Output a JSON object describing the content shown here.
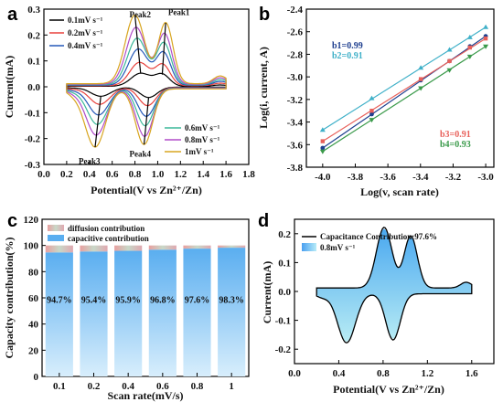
{
  "chart_data": [
    {
      "panel": "a",
      "type": "line",
      "xlabel": "Potential(V vs Zn²⁺/Zn)",
      "ylabel": "Current(mA)",
      "xlim": [
        0.0,
        1.8
      ],
      "ylim": [
        -0.3,
        0.3
      ],
      "xticks": [
        "0.0",
        "0.2",
        "0.4",
        "0.6",
        "0.8",
        "1.0",
        "1.2",
        "1.4",
        "1.6",
        "1.8"
      ],
      "yticks": [
        "-0.3",
        "-0.2",
        "-0.1",
        "0.0",
        "0.1",
        "0.2",
        "0.3"
      ],
      "legend_left": [
        "0.1mV s⁻¹",
        "0.2mV s⁻¹",
        "0.4mV s⁻¹"
      ],
      "legend_right": [
        "0.6mV s⁻¹",
        "0.8mV s⁻¹",
        "1mV s⁻¹"
      ],
      "peak_labels": [
        "Peak1",
        "Peak2",
        "Peak3",
        "Peak4"
      ],
      "series": [
        {
          "name": "0.1mV s⁻¹",
          "color": "#000000",
          "anodic_peaks": [
            0.05,
            0.045
          ],
          "cathodic_peaks": [
            -0.035,
            -0.04
          ],
          "peaks_v": [
            0.85,
            1.04,
            0.5,
            0.92
          ]
        },
        {
          "name": "0.2mV s⁻¹",
          "color": "#e8413c",
          "anodic_peaks": [
            0.09,
            0.08
          ],
          "cathodic_peaks": [
            -0.065,
            -0.07
          ],
          "peaks_v": [
            0.84,
            1.045,
            0.49,
            0.91
          ]
        },
        {
          "name": "0.4mV s⁻¹",
          "color": "#2458b8",
          "anodic_peaks": [
            0.14,
            0.125
          ],
          "cathodic_peaks": [
            -0.105,
            -0.11
          ],
          "peaks_v": [
            0.83,
            1.05,
            0.48,
            0.9
          ]
        },
        {
          "name": "0.6mV s⁻¹",
          "color": "#3cb89a",
          "anodic_peaks": [
            0.18,
            0.16
          ],
          "cathodic_peaks": [
            -0.14,
            -0.145
          ],
          "peaks_v": [
            0.82,
            1.055,
            0.47,
            0.89
          ]
        },
        {
          "name": "0.8mV s⁻¹",
          "color": "#b04cc8",
          "anodic_peaks": [
            0.22,
            0.195
          ],
          "cathodic_peaks": [
            -0.18,
            -0.185
          ],
          "peaks_v": [
            0.81,
            1.06,
            0.46,
            0.885
          ]
        },
        {
          "name": "1mV s⁻¹",
          "color": "#d8a520",
          "anodic_peaks": [
            0.265,
            0.235
          ],
          "cathodic_peaks": [
            -0.225,
            -0.215
          ],
          "peaks_v": [
            0.8,
            1.07,
            0.45,
            0.88
          ]
        }
      ]
    },
    {
      "panel": "b",
      "type": "scatter",
      "xlabel": "Log(v, scan rate)",
      "ylabel": "Log(i, current, A)",
      "xlim": [
        -4.1,
        -2.95
      ],
      "ylim": [
        -3.8,
        -2.4
      ],
      "xticks": [
        "-4.0",
        "-3.8",
        "-3.6",
        "-3.4",
        "-3.2",
        "-3.0"
      ],
      "yticks": [
        "-3.8",
        "-3.6",
        "-3.4",
        "-3.2",
        "-3.0",
        "-2.8",
        "-2.6",
        "-2.4"
      ],
      "x": [
        -4.0,
        -3.699,
        -3.398,
        -3.222,
        -3.097,
        -3.0
      ],
      "series": [
        {
          "name": "b1=0.99",
          "color": "#1f3f8f",
          "values": [
            -3.63,
            -3.33,
            -3.03,
            -2.86,
            -2.73,
            -2.64
          ]
        },
        {
          "name": "b2=0.91",
          "color": "#3fb0c8",
          "values": [
            -3.47,
            -3.19,
            -2.92,
            -2.76,
            -2.65,
            -2.56
          ]
        },
        {
          "name": "b3=0.91",
          "color": "#e8605a",
          "values": [
            -3.57,
            -3.3,
            -3.02,
            -2.86,
            -2.74,
            -2.66
          ]
        },
        {
          "name": "b4=0.93",
          "color": "#3a9a4a",
          "values": [
            -3.66,
            -3.38,
            -3.1,
            -2.94,
            -2.82,
            -2.73
          ]
        }
      ]
    },
    {
      "panel": "c",
      "type": "bar",
      "xlabel": "Scan rate(mV/s)",
      "ylabel": "Capacity contribution(%)",
      "ylim": [
        0,
        120
      ],
      "yticks": [
        "0",
        "20",
        "40",
        "60",
        "80",
        "100",
        "120"
      ],
      "categories": [
        "0.1",
        "0.2",
        "0.4",
        "0.6",
        "0.8",
        "1"
      ],
      "legend": [
        "diffusion contribution",
        "capacitive contribution"
      ],
      "series": [
        {
          "name": "capacitive contribution",
          "values": [
            94.7,
            95.4,
            95.9,
            96.8,
            97.6,
            98.3
          ]
        },
        {
          "name": "diffusion contribution",
          "values": [
            5.3,
            4.6,
            4.1,
            3.2,
            2.4,
            1.7
          ]
        }
      ],
      "labels": [
        "94.7%",
        "95.4%",
        "95.9%",
        "96.8%",
        "97.6%",
        "98.3%"
      ]
    },
    {
      "panel": "d",
      "type": "area",
      "xlabel": "Potential(V vs Zn²⁺/Zn)",
      "ylabel": "Current(mA)",
      "xlim": [
        0.0,
        1.8
      ],
      "ylim": [
        -0.25,
        0.25
      ],
      "xticks": [
        "0.0",
        "0.4",
        "0.8",
        "1.2",
        "1.6"
      ],
      "yticks": [
        "-0.2",
        "-0.1",
        "0.0",
        "0.1",
        "0.2"
      ],
      "legend": [
        "Capacitance Contribution:97.6%",
        "0.8mV s⁻¹"
      ]
    }
  ],
  "panel_letters": [
    "a",
    "b",
    "c",
    "d"
  ]
}
